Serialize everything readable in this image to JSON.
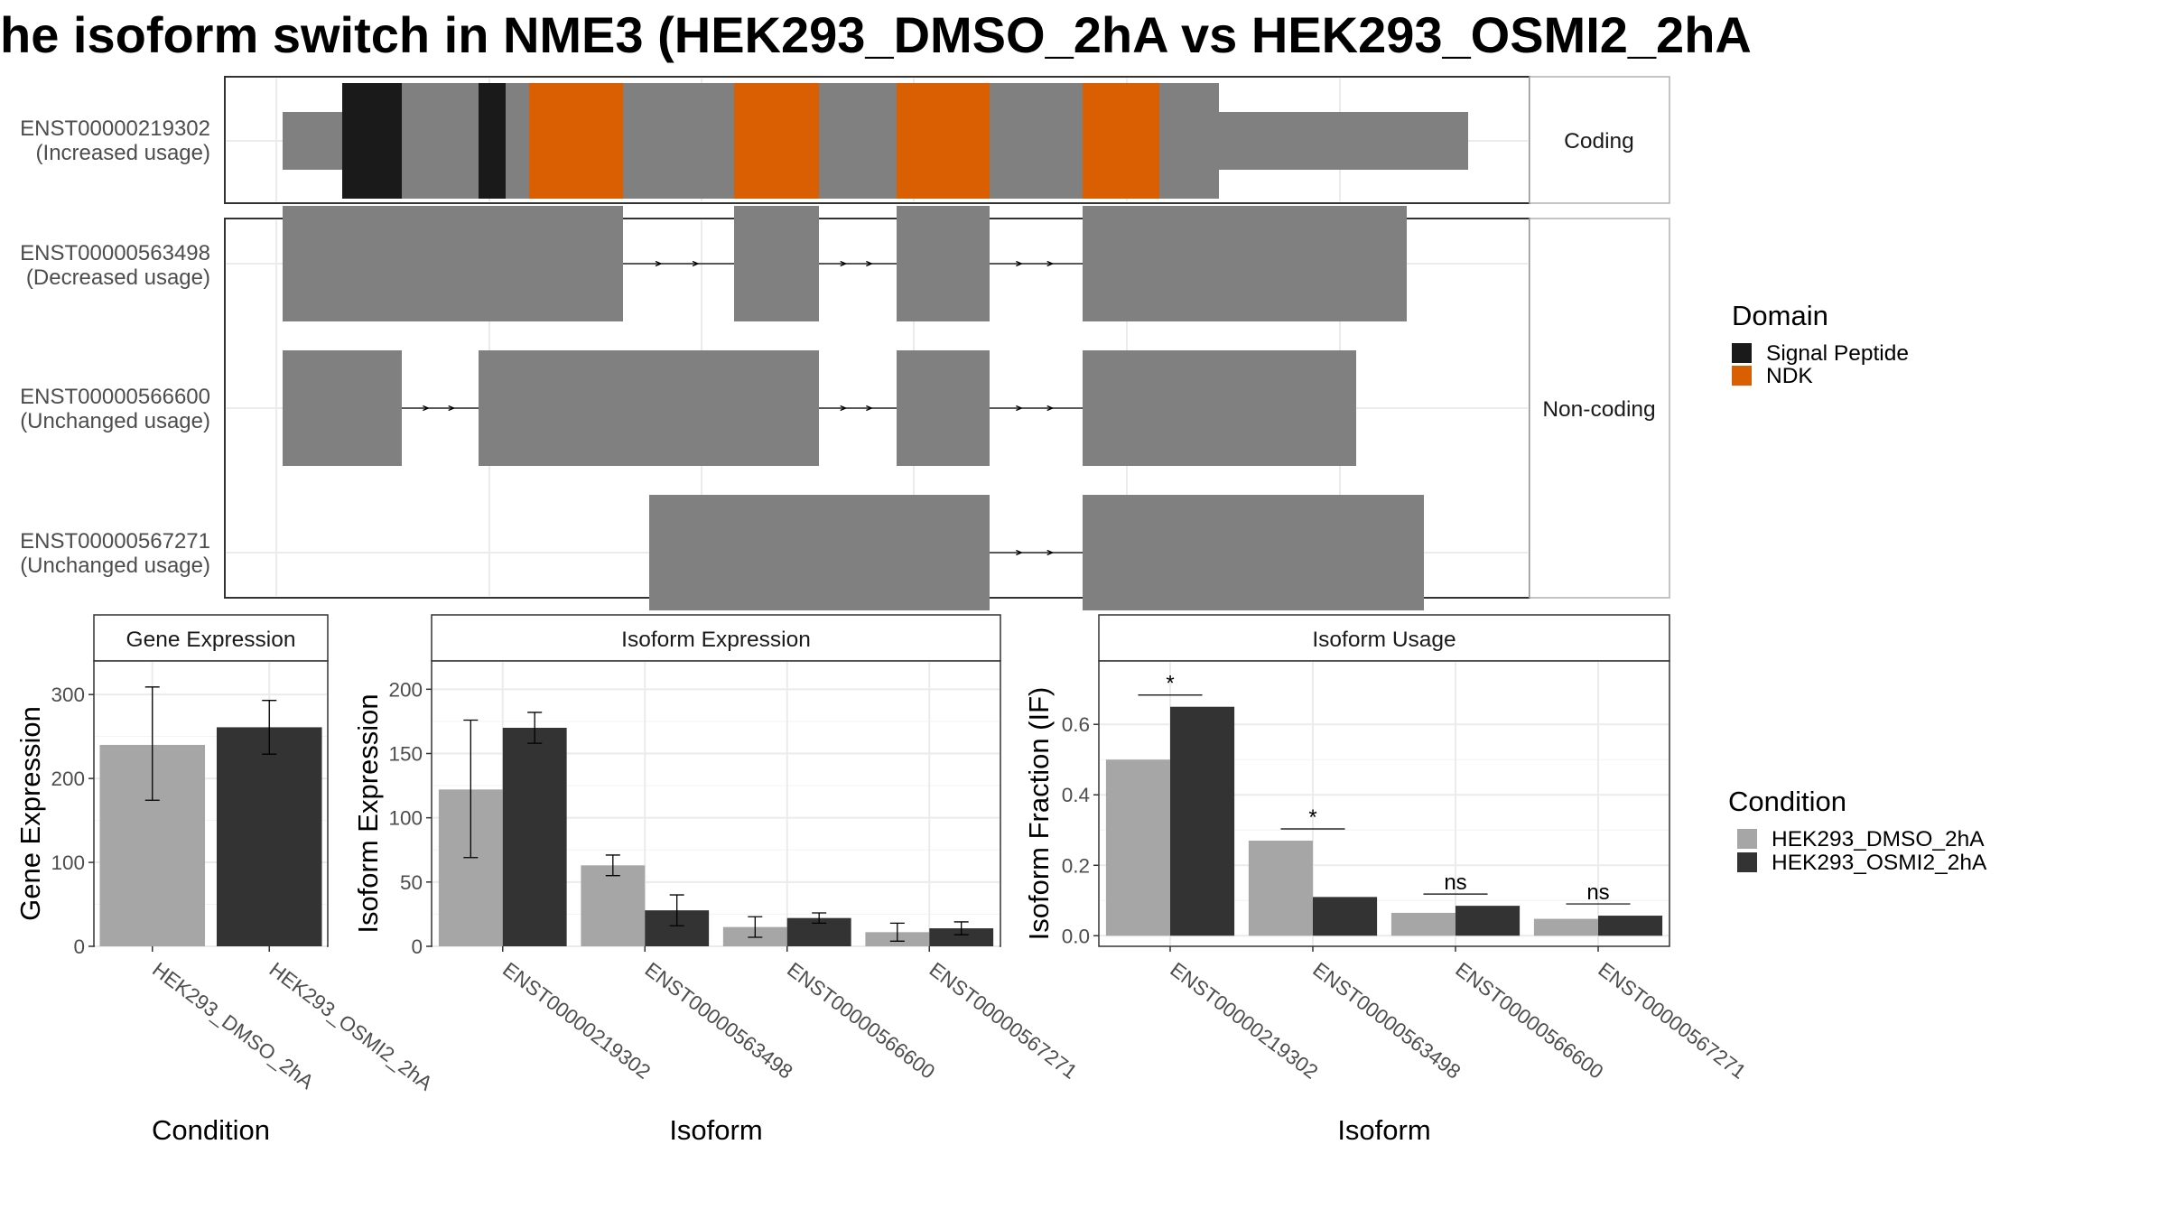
{
  "title": "he isoform switch in NME3 (HEK293_DMSO_2hA vs HEK293_OSMI2_2hA",
  "colors": {
    "exon": "#808080",
    "signal_peptide": "#1a1a1a",
    "ndk": "#d95f02",
    "dmso": "#a6a6a6",
    "osmi2": "#333333"
  },
  "structure": {
    "facets": [
      "Coding",
      "Non-coding"
    ],
    "isoforms": [
      {
        "id": "ENST00000219302",
        "usage": "(Increased usage)",
        "facet": "Coding"
      },
      {
        "id": "ENST00000563498",
        "usage": "(Decreased usage)",
        "facet": "Non-coding"
      },
      {
        "id": "ENST00000566600",
        "usage": "(Unchanged usage)",
        "facet": "Non-coding"
      },
      {
        "id": "ENST00000567271",
        "usage": "(Unchanged usage)",
        "facet": "Non-coding"
      }
    ]
  },
  "legend_domain": {
    "title": "Domain",
    "items": [
      {
        "label": "Signal Peptide",
        "color": "#1a1a1a"
      },
      {
        "label": "NDK",
        "color": "#d95f02"
      }
    ]
  },
  "legend_condition": {
    "title": "Condition",
    "items": [
      {
        "label": "HEK293_DMSO_2hA",
        "color": "#a6a6a6"
      },
      {
        "label": "HEK293_OSMI2_2hA",
        "color": "#333333"
      }
    ]
  },
  "chart_data": [
    {
      "type": "bar",
      "title": "Gene Expression",
      "xlabel": "Condition",
      "ylabel": "Gene Expression",
      "categories": [
        "HEK293_DMSO_2hA",
        "HEK293_OSMI2_2hA"
      ],
      "values": [
        240,
        261
      ],
      "errors": [
        [
          174,
          309
        ],
        [
          229,
          293
        ]
      ],
      "ylim": [
        0,
        340
      ],
      "yticks": [
        0,
        100,
        200,
        300
      ]
    },
    {
      "type": "bar",
      "title": "Isoform Expression",
      "xlabel": "Isoform",
      "ylabel": "Isoform Expression",
      "categories": [
        "ENST00000219302",
        "ENST00000563498",
        "ENST00000566600",
        "ENST00000567271"
      ],
      "series": [
        {
          "name": "HEK293_DMSO_2hA",
          "values": [
            122,
            63,
            15,
            11
          ],
          "errors": [
            [
              69,
              176
            ],
            [
              55,
              71
            ],
            [
              7,
              23
            ],
            [
              4,
              18
            ]
          ]
        },
        {
          "name": "HEK293_OSMI2_2hA",
          "values": [
            170,
            28,
            22,
            14
          ],
          "errors": [
            [
              158,
              182
            ],
            [
              16,
              40
            ],
            [
              18,
              26
            ],
            [
              9,
              19
            ]
          ]
        }
      ],
      "ylim": [
        0,
        222
      ],
      "yticks": [
        0,
        50,
        100,
        150,
        200
      ]
    },
    {
      "type": "bar",
      "title": "Isoform Usage",
      "xlabel": "Isoform",
      "ylabel": "Isoform Fraction (IF)",
      "categories": [
        "ENST00000219302",
        "ENST00000563498",
        "ENST00000566600",
        "ENST00000567271"
      ],
      "series": [
        {
          "name": "HEK293_DMSO_2hA",
          "values": [
            0.5,
            0.27,
            0.065,
            0.048
          ]
        },
        {
          "name": "HEK293_OSMI2_2hA",
          "values": [
            0.65,
            0.11,
            0.085,
            0.057
          ]
        }
      ],
      "significance": [
        "*",
        "*",
        "ns",
        "ns"
      ],
      "ylim": [
        -0.03,
        0.78
      ],
      "yticks": [
        "0.0",
        "0.2",
        "0.4",
        "0.6"
      ]
    }
  ]
}
